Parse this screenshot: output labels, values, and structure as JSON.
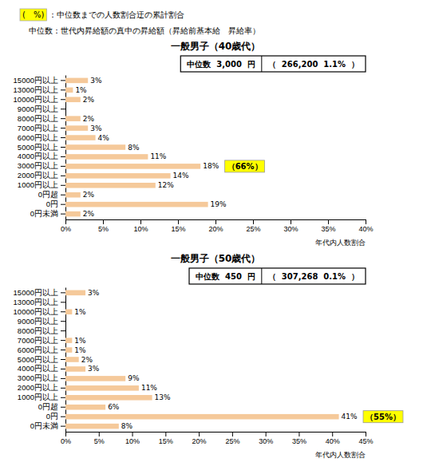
{
  "chart_data": [
    {
      "type": "bar",
      "orientation": "horizontal",
      "title": "一般男子（40歳代）",
      "subtitle": [
        "(　%)",
        "：中位数までの人数割合迂の累計割合",
        "中位数：世代内昇給額の真中の昇給額（昇給前基本給　昇給率）"
      ],
      "xlabel": "年代内人数割合",
      "categories": [
        "15000円以上",
        "13000円以上",
        "10000円以上",
        "9000円以上",
        "8000円以上",
        "7000円以上",
        "6000円以上",
        "5000円以上",
        "4000円以上",
        "3000円以上",
        "2000円以上",
        "1000円以上",
        "0円超",
        "0円",
        "0円未満"
      ],
      "values": [
        3,
        1,
        2,
        0,
        2,
        3,
        4,
        8,
        11,
        18,
        14,
        12,
        2,
        19,
        2
      ],
      "value_labels": [
        "3%",
        "1%",
        "2%",
        null,
        "2%",
        "3%",
        "4%",
        "8%",
        "11%",
        "18%",
        "14%",
        "12%",
        "2%",
        "19%",
        "2%"
      ],
      "data_labels": true,
      "color": "#f5c99a",
      "xlim": [
        0,
        40
      ],
      "xticks": [
        {
          "value": 0,
          "label": "0%"
        },
        {
          "value": 5,
          "label": "5%"
        },
        {
          "value": 10,
          "label": "10%"
        },
        {
          "value": 15,
          "label": "15%"
        },
        {
          "value": 20,
          "label": "20%"
        },
        {
          "value": 25,
          "label": "25%"
        },
        {
          "value": 30,
          "label": "30%"
        },
        {
          "value": 35,
          "label": "35%"
        },
        {
          "value": 40,
          "label": "40%"
        }
      ],
      "grid": false,
      "annotations": [
        {
          "text": "（66%）",
          "category": "3000円以上"
        },
        {
          "text": "中位数  3,000  円"
        },
        {
          "text": "（  266,200  1.1%  ）"
        }
      ]
    },
    {
      "type": "bar",
      "orientation": "horizontal",
      "title": "一般男子（50歳代）",
      "xlabel": "年代内人数割合",
      "categories": [
        "15000円以上",
        "13000円以上",
        "10000円以上",
        "9000円以上",
        "8000円以上",
        "7000円以上",
        "6000円以上",
        "5000円以上",
        "4000円以上",
        "3000円以上",
        "2000円以上",
        "1000円以上",
        "0円超",
        "0円",
        "0円未満"
      ],
      "values": [
        3,
        0,
        1,
        0,
        0,
        1,
        1,
        2,
        3,
        9,
        11,
        13,
        6,
        41,
        8
      ],
      "value_labels": [
        "3%",
        null,
        "1%",
        null,
        null,
        "1%",
        "1%",
        "2%",
        "3%",
        "9%",
        "11%",
        "13%",
        "6%",
        "41%",
        "8%"
      ],
      "data_labels": true,
      "color": "#f5c99a",
      "xlim": [
        0,
        45
      ],
      "xticks": [
        {
          "value": 0,
          "label": "0%"
        },
        {
          "value": 5,
          "label": "5%"
        },
        {
          "value": 10,
          "label": "10%"
        },
        {
          "value": 15,
          "label": "15%"
        },
        {
          "value": 20,
          "label": "20%"
        },
        {
          "value": 25,
          "label": "25%"
        },
        {
          "value": 30,
          "label": "30%"
        },
        {
          "value": 35,
          "label": "35%"
        },
        {
          "value": 40,
          "label": "40%"
        },
        {
          "value": 45,
          "label": "45%"
        }
      ],
      "grid": false,
      "annotations": [
        {
          "text": "（55%）",
          "category": "0円"
        },
        {
          "text": "中位数  450  円"
        },
        {
          "text": "（  307,268  0.1%  ）"
        }
      ]
    }
  ]
}
